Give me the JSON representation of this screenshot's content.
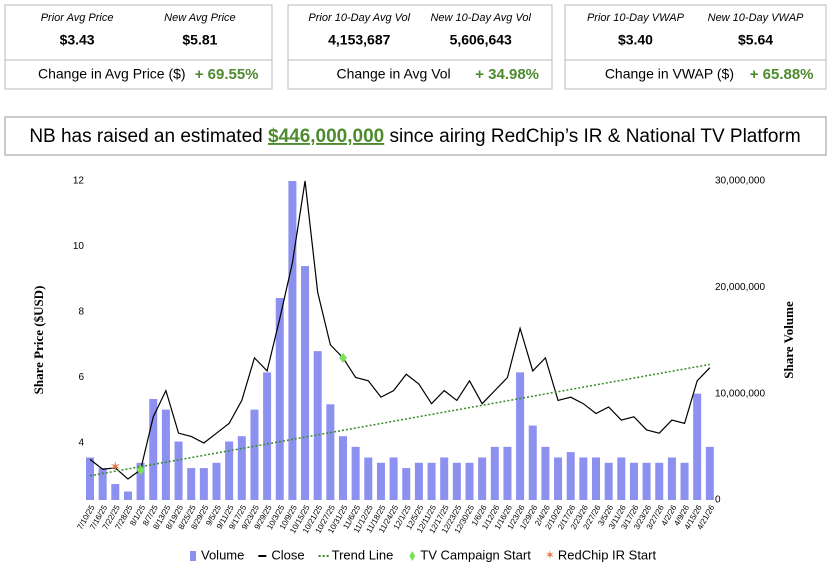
{
  "stats": [
    {
      "labels": [
        "Prior Avg Price",
        "New Avg Price"
      ],
      "values": [
        "$3.43",
        "$5.81"
      ],
      "change_label": "Change in Avg Price ($)",
      "change": "+ 69.55%"
    },
    {
      "labels": [
        "Prior 10-Day Avg Vol",
        "New 10-Day Avg Vol"
      ],
      "values": [
        "4,153,687",
        "5,606,643"
      ],
      "change_label": "Change in Avg Vol",
      "change": "+ 34.98%"
    },
    {
      "labels": [
        "Prior 10-Day VWAP",
        "New 10-Day VWAP"
      ],
      "values": [
        "$3.40",
        "$5.64"
      ],
      "change_label": "Change in VWAP ($)",
      "change": "+ 65.88%"
    }
  ],
  "headline": {
    "before": "NB has raised an estimated ",
    "amount": "$446,000,000",
    "after": " since airing RedChip’s IR & National TV Platform"
  },
  "chart_data": {
    "type": "bar-line",
    "y_label": "Share Price ($USD)",
    "y2_label": "Share Volume",
    "categories": [
      "7/10/25",
      "7/16/25",
      "7/22/25",
      "7/28/25",
      "8/1/25",
      "8/7/25",
      "8/13/25",
      "8/19/25",
      "8/25/25",
      "8/29/25",
      "9/5/25",
      "9/11/25",
      "9/17/25",
      "9/23/25",
      "9/29/25",
      "10/3/25",
      "10/9/25",
      "10/15/25",
      "10/21/25",
      "10/27/25",
      "10/31/25",
      "11/6/25",
      "11/12/25",
      "11/18/25",
      "11/24/25",
      "12/1/25",
      "12/5/25",
      "12/11/25",
      "12/17/25",
      "12/23/25",
      "12/30/25",
      "1/6/26",
      "1/12/26",
      "1/16/26",
      "1/23/26",
      "1/29/26",
      "2/4/26",
      "2/10/26",
      "2/17/26",
      "2/23/26",
      "2/27/26",
      "3/5/26",
      "3/11/26",
      "3/17/26",
      "3/23/26",
      "3/27/26",
      "4/2/26",
      "4/9/26",
      "4/15/26",
      "4/21/26"
    ],
    "series": [
      {
        "name": "Volume",
        "color": "#8c90ee",
        "axis": "y2",
        "values": [
          4000000,
          3000000,
          1500000,
          800000,
          3500000,
          9500000,
          8500000,
          5500000,
          3000000,
          3000000,
          3500000,
          5500000,
          6000000,
          8500000,
          12000000,
          19000000,
          30000000,
          22000000,
          14000000,
          9000000,
          6000000,
          5000000,
          4000000,
          3500000,
          4000000,
          3000000,
          3500000,
          3500000,
          4000000,
          3500000,
          3500000,
          4000000,
          5000000,
          5000000,
          12000000,
          7000000,
          5000000,
          4000000,
          4500000,
          4000000,
          4000000,
          3500000,
          4000000,
          3500000,
          3500000,
          3500000,
          4000000,
          3500000,
          10000000,
          5000000
        ]
      },
      {
        "name": "Close",
        "color": "#000000",
        "values": [
          3.5,
          3.2,
          3.24,
          2.9,
          3.18,
          4.8,
          5.6,
          4.3,
          4.2,
          4.0,
          4.3,
          4.6,
          5.3,
          6.6,
          6.2,
          7.8,
          9.5,
          12.0,
          8.6,
          7.0,
          6.6,
          6.0,
          5.9,
          5.4,
          5.6,
          6.1,
          5.8,
          5.2,
          5.6,
          5.3,
          5.9,
          5.2,
          5.6,
          6.0,
          7.5,
          6.2,
          6.6,
          5.3,
          5.4,
          5.2,
          4.9,
          5.1,
          4.7,
          4.8,
          4.4,
          4.3,
          4.7,
          4.6,
          5.9,
          6.3
        ]
      },
      {
        "name": "TV Campaign Start",
        "color": "#7ee05a",
        "values": [
          null,
          null,
          null,
          null,
          3.18,
          null,
          null,
          null,
          null,
          null,
          null,
          null,
          null,
          null,
          null,
          null,
          null,
          null,
          null,
          null,
          6.6,
          null,
          null,
          null,
          null,
          null,
          null,
          null,
          null,
          null,
          null,
          null,
          null,
          null,
          null,
          null,
          null,
          null,
          null,
          null,
          null,
          null,
          null,
          null,
          null,
          null,
          null,
          null,
          null,
          null
        ]
      },
      {
        "name": "RedChip IR Start",
        "color": "#e8743b",
        "values": [
          null,
          null,
          3.24,
          null,
          null,
          null,
          null,
          null,
          null,
          null,
          null,
          null,
          null,
          null,
          null,
          null,
          null,
          null,
          null,
          null,
          null,
          null,
          null,
          null,
          null,
          null,
          null,
          null,
          null,
          null,
          null,
          null,
          null,
          null,
          null,
          null,
          null,
          null,
          null,
          null,
          null,
          null,
          null,
          null,
          null,
          null,
          null,
          null,
          null,
          null
        ]
      }
    ],
    "trend_line": {
      "name": "Trend Line",
      "color": "#3a8a2a",
      "categories": [
        "7/10/25",
        "4/21/26"
      ],
      "values": [
        3.0,
        6.4
      ]
    },
    "ylim": [
      2.26,
      12
    ],
    "yticks": [
      4,
      6,
      8,
      10,
      12
    ],
    "y2lim": [
      0,
      30000000
    ],
    "y2ticks": [
      0,
      {
        "value": 10000000,
        "label": "10,000,000"
      },
      {
        "value": 20000000,
        "label": "20,000,000"
      },
      {
        "value": 30000000,
        "label": "30,000,000"
      }
    ]
  }
}
